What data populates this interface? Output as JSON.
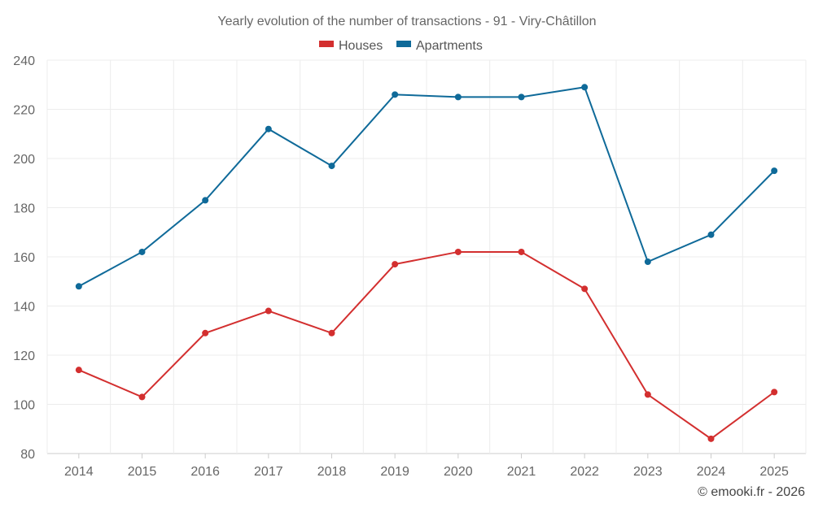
{
  "chart_data": {
    "type": "line",
    "title": "Yearly evolution of the number of transactions - 91 - Viry-Châtillon",
    "categories": [
      "2014",
      "2015",
      "2016",
      "2017",
      "2018",
      "2019",
      "2020",
      "2021",
      "2022",
      "2023",
      "2024",
      "2025"
    ],
    "series": [
      {
        "name": "Houses",
        "color": "#d32f2f",
        "values": [
          114,
          103,
          129,
          138,
          129,
          157,
          162,
          162,
          147,
          104,
          86,
          105
        ]
      },
      {
        "name": "Apartments",
        "color": "#0f6a99",
        "values": [
          148,
          162,
          183,
          212,
          197,
          226,
          225,
          225,
          229,
          158,
          169,
          195
        ]
      }
    ],
    "ylim": [
      80,
      240
    ],
    "yticks": [
      80,
      100,
      120,
      140,
      160,
      180,
      200,
      220,
      240
    ],
    "xlabel": "",
    "ylabel": "",
    "grid": true,
    "legend": "top-center"
  },
  "credit": "© emooki.fr - 2026"
}
